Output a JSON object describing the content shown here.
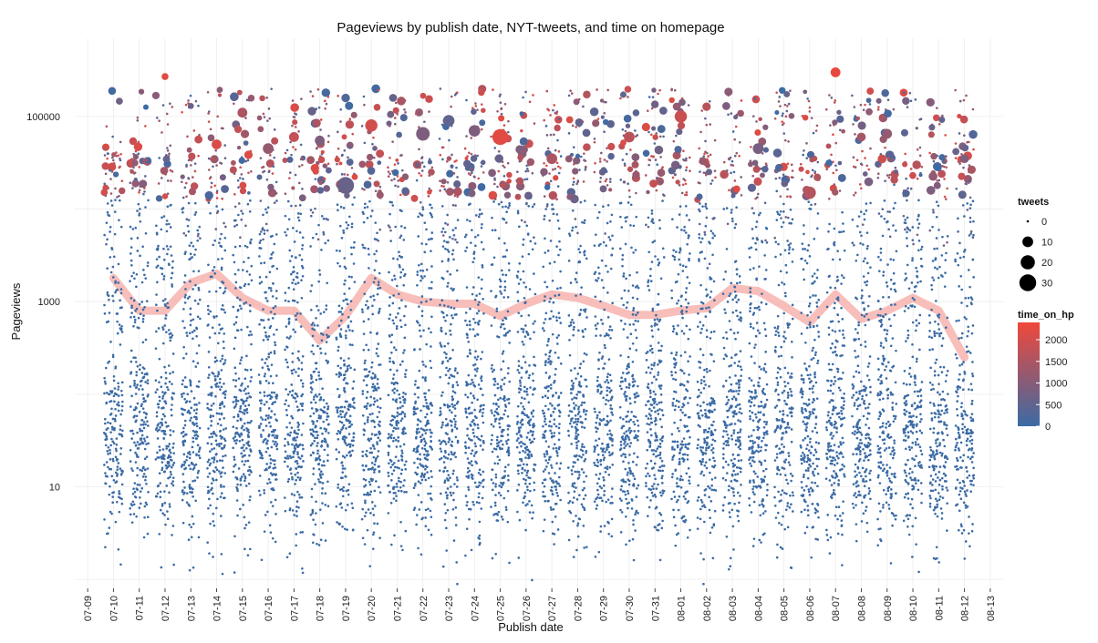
{
  "chart_data": {
    "type": "scatter",
    "title": "Pageviews by publish date, NYT-tweets, and time on homepage",
    "xlabel": "Publish date",
    "ylabel": "Pageviews",
    "y_scale": "log10",
    "ylim": [
      0.8,
      700000
    ],
    "y_ticks": [
      10,
      1000,
      100000
    ],
    "y_tick_labels": [
      "10",
      "1000",
      "100000"
    ],
    "categories": [
      "07-09",
      "07-10",
      "07-11",
      "07-12",
      "07-13",
      "07-14",
      "07-15",
      "07-16",
      "07-17",
      "07-18",
      "07-19",
      "07-20",
      "07-21",
      "07-22",
      "07-23",
      "07-24",
      "07-25",
      "07-26",
      "07-27",
      "07-28",
      "07-29",
      "07-30",
      "07-31",
      "08-01",
      "08-02",
      "08-03",
      "08-04",
      "08-05",
      "08-06",
      "08-07",
      "08-08",
      "08-09",
      "08-10",
      "08-11",
      "08-12",
      "08-13"
    ],
    "grid": true,
    "point_size_variable": "tweets",
    "point_color_variable": "time_on_hp",
    "colors": {
      "low": "#3b6ba5",
      "high": "#f0483a",
      "smooth": "#f7b3ae"
    },
    "smooth_line": {
      "name": "mean pageviews",
      "values": [
        null,
        1800,
        800,
        800,
        1600,
        2000,
        1100,
        800,
        800,
        380,
        700,
        1800,
        1200,
        1000,
        950,
        950,
        700,
        950,
        1200,
        1100,
        900,
        720,
        720,
        800,
        850,
        1400,
        1300,
        900,
        600,
        1200,
        650,
        800,
        1100,
        800,
        250,
        null
      ]
    },
    "scatter_summary": {
      "note": "Dense jittered scatter of articles per publish date; most points are blue (low time_on_hp) between ~5 and ~10000 pageviews, with redder, larger points at higher pageviews.",
      "per_day_count": 260,
      "high_points": [
        {
          "x": "07-12",
          "y": 270000,
          "tweets": 3,
          "time_on_hp": 2200
        },
        {
          "x": "07-13",
          "y": 130000,
          "tweets": 2,
          "time_on_hp": 600
        },
        {
          "x": "07-14",
          "y": 50000,
          "tweets": 8,
          "time_on_hp": 2100
        },
        {
          "x": "07-15",
          "y": 110000,
          "tweets": 8,
          "time_on_hp": 1500
        },
        {
          "x": "07-16",
          "y": 45000,
          "tweets": 10,
          "time_on_hp": 1200
        },
        {
          "x": "07-17",
          "y": 60000,
          "tweets": 8,
          "time_on_hp": 1800
        },
        {
          "x": "07-18",
          "y": 55000,
          "tweets": 8,
          "time_on_hp": 900
        },
        {
          "x": "07-19",
          "y": 18000,
          "tweets": 30,
          "time_on_hp": 600
        },
        {
          "x": "07-20",
          "y": 80000,
          "tweets": 14,
          "time_on_hp": 2000
        },
        {
          "x": "07-22",
          "y": 65000,
          "tweets": 18,
          "time_on_hp": 900
        },
        {
          "x": "07-23",
          "y": 90000,
          "tweets": 12,
          "time_on_hp": 500
        },
        {
          "x": "07-24",
          "y": 70000,
          "tweets": 12,
          "time_on_hp": 900
        },
        {
          "x": "07-25",
          "y": 60000,
          "tweets": 26,
          "time_on_hp": 2200
        },
        {
          "x": "07-27",
          "y": 35000,
          "tweets": 10,
          "time_on_hp": 1500
        },
        {
          "x": "07-30",
          "y": 60000,
          "tweets": 10,
          "time_on_hp": 1700
        },
        {
          "x": "08-01",
          "y": 100000,
          "tweets": 14,
          "time_on_hp": 1900
        },
        {
          "x": "08-04",
          "y": 45000,
          "tweets": 10,
          "time_on_hp": 800
        },
        {
          "x": "08-06",
          "y": 15000,
          "tweets": 14,
          "time_on_hp": 1600
        },
        {
          "x": "08-07",
          "y": 300000,
          "tweets": 8,
          "time_on_hp": 2300
        },
        {
          "x": "08-08",
          "y": 60000,
          "tweets": 6,
          "time_on_hp": 1400
        },
        {
          "x": "08-09",
          "y": 65000,
          "tweets": 8,
          "time_on_hp": 1200
        },
        {
          "x": "08-12",
          "y": 35000,
          "tweets": 6,
          "time_on_hp": 900
        }
      ]
    },
    "legends": {
      "size": {
        "title": "tweets",
        "entries": [
          {
            "label": "0",
            "value": 0
          },
          {
            "label": "10",
            "value": 10
          },
          {
            "label": "20",
            "value": 20
          },
          {
            "label": "30",
            "value": 30
          }
        ]
      },
      "color": {
        "title": "time_on_hp",
        "range": [
          0,
          2400
        ],
        "entries": [
          {
            "label": "2000",
            "value": 2000
          },
          {
            "label": "1500",
            "value": 1500
          },
          {
            "label": "1000",
            "value": 1000
          },
          {
            "label": "500",
            "value": 500
          },
          {
            "label": "0",
            "value": 0
          }
        ]
      },
      "placement": "right"
    }
  }
}
